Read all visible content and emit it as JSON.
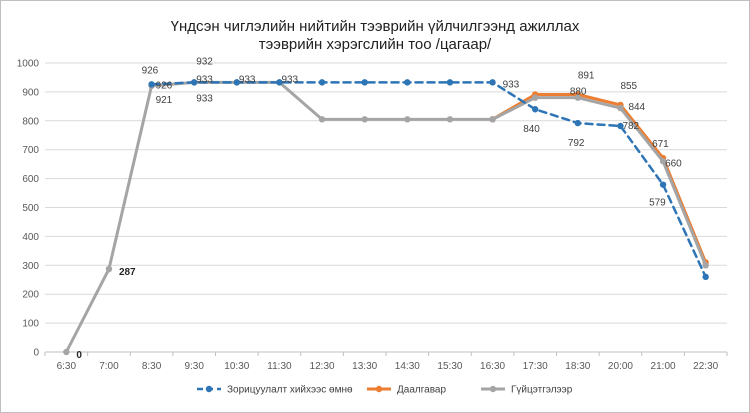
{
  "chart_data": {
    "type": "line",
    "title": [
      "Үндсэн чиглэлийн нийтийн тээврийн үйлчилгээнд ажиллах",
      "тээврийн хэрэгслийн тоо /цагаар/"
    ],
    "categories": [
      "6:30",
      "7:00",
      "8:30",
      "9:30",
      "10:30",
      "11:30",
      "12:30",
      "13:30",
      "14:30",
      "15:30",
      "16:30",
      "17:30",
      "18:30",
      "20:00",
      "21:00",
      "22:30"
    ],
    "ylim": [
      0,
      1000
    ],
    "yticks": [
      0,
      100,
      200,
      300,
      400,
      500,
      600,
      700,
      800,
      900,
      1000
    ],
    "ytick_labels": [
      "0",
      "100",
      "200",
      "300",
      "400",
      "500",
      "600",
      "700",
      "800",
      "900",
      "1000"
    ],
    "grid": true,
    "legend_position": "bottom",
    "series": [
      {
        "name": "Зорицуулалт хийхээс өмнө",
        "color": "#2e75b6",
        "dash": true,
        "values": [
          null,
          null,
          926,
          933,
          933,
          933,
          933,
          933,
          933,
          933,
          933,
          840,
          792,
          782,
          579,
          260
        ]
      },
      {
        "name": "Даалгавар",
        "color": "#ed7d31",
        "dash": false,
        "values": [
          null,
          null,
          null,
          null,
          null,
          null,
          null,
          null,
          null,
          null,
          805,
          891,
          891,
          855,
          671,
          310
        ]
      },
      {
        "name": "Гүйцэтгэлээр",
        "color": "#a5a5a5",
        "dash": false,
        "values": [
          0,
          287,
          921,
          933,
          933,
          933,
          805,
          805,
          805,
          805,
          805,
          880,
          880,
          844,
          660,
          300
        ]
      }
    ],
    "labels": [
      {
        "text": "0",
        "category": "6:30",
        "value": 0,
        "bold": true
      },
      {
        "text": "287",
        "category": "7:00",
        "value": 287,
        "bold": true
      },
      {
        "text": "926",
        "category": "8:30",
        "value": 926
      },
      {
        "text": "926",
        "category": "8:30",
        "value": 926
      },
      {
        "text": "921",
        "category": "8:30",
        "value": 921
      },
      {
        "text": "932",
        "category": "9:30",
        "value": 932
      },
      {
        "text": "933",
        "category": "9:30",
        "value": 933
      },
      {
        "text": "933",
        "category": "9:30",
        "value": 933
      },
      {
        "text": "933",
        "category": "10:30",
        "value": 933
      },
      {
        "text": "933",
        "category": "11:30",
        "value": 933
      },
      {
        "text": "933",
        "category": "16:30",
        "value": 933
      },
      {
        "text": "840",
        "category": "17:30",
        "value": 840
      },
      {
        "text": "891",
        "category": "18:30",
        "value": 891
      },
      {
        "text": "880",
        "category": "18:30",
        "value": 880
      },
      {
        "text": "792",
        "category": "18:30",
        "value": 792
      },
      {
        "text": "855",
        "category": "20:00",
        "value": 855
      },
      {
        "text": "782",
        "category": "20:00",
        "value": 782
      },
      {
        "text": "844",
        "category": "20:00",
        "value": 844
      },
      {
        "text": "671",
        "category": "21:00",
        "value": 671
      },
      {
        "text": "660",
        "category": "21:00",
        "value": 660
      },
      {
        "text": "579",
        "category": "21:00",
        "value": 579
      }
    ]
  }
}
